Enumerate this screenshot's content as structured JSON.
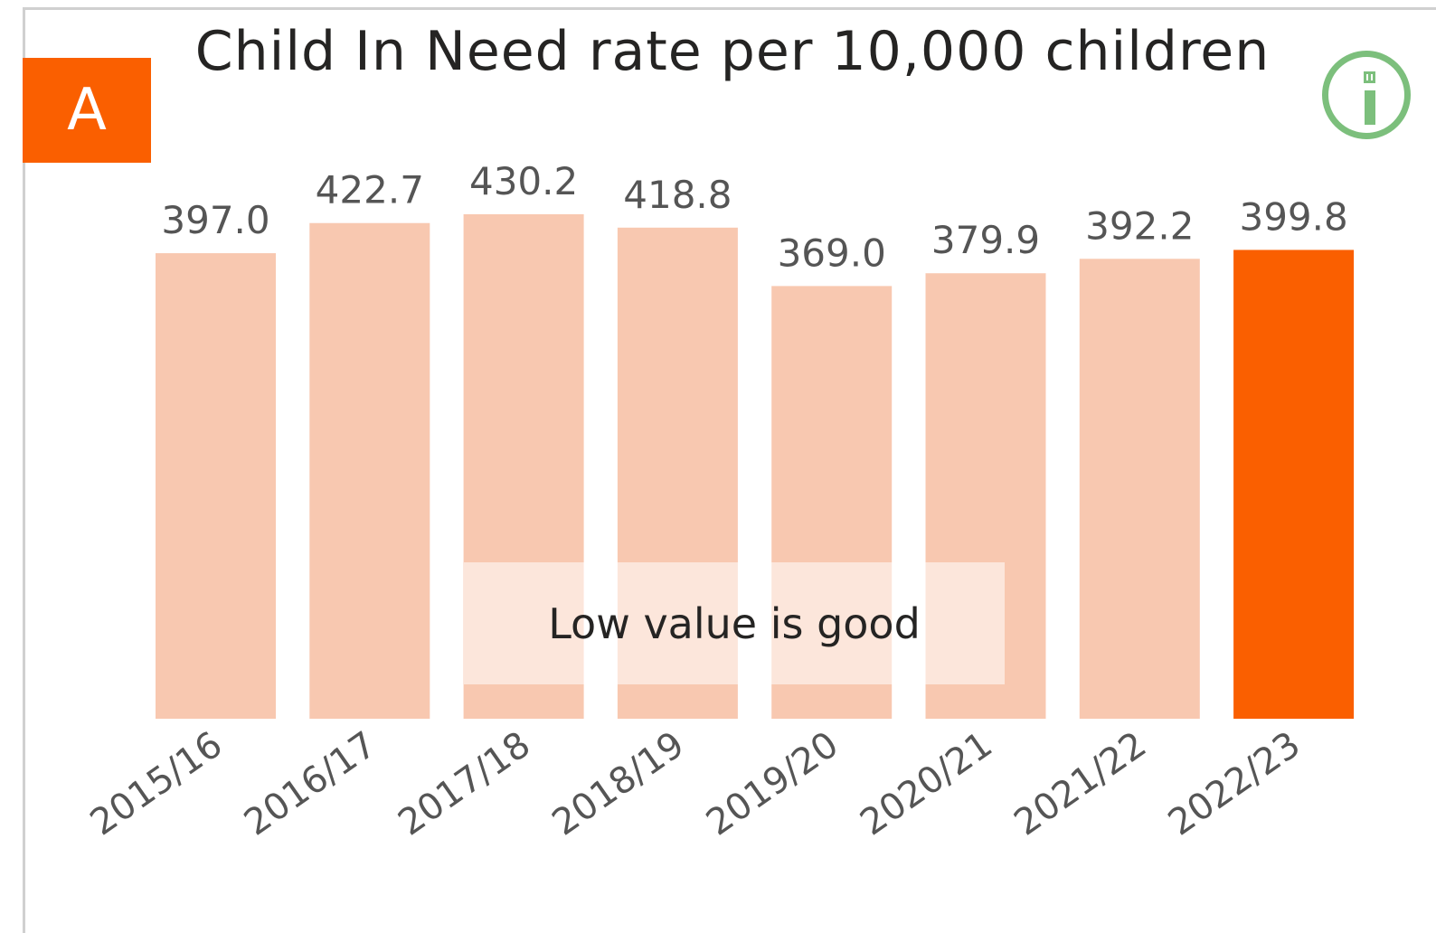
{
  "badge": {
    "text": "A",
    "color": "#fa5f00"
  },
  "info_button": {
    "icon": "info-icon",
    "color": "#7cbf7c"
  },
  "note": "Low value is good",
  "chart_data": {
    "type": "bar",
    "title": "Child In Need rate per 10,000 children",
    "categories": [
      "2015/16",
      "2016/17",
      "2017/18",
      "2018/19",
      "2019/20",
      "2020/21",
      "2021/22",
      "2022/23"
    ],
    "values": [
      397.0,
      422.7,
      430.2,
      418.8,
      369.0,
      379.9,
      392.2,
      399.8
    ],
    "value_labels": [
      "397.0",
      "422.7",
      "430.2",
      "418.8",
      "369.0",
      "379.9",
      "392.2",
      "399.8"
    ],
    "highlight_index": 7,
    "ylim": [
      0,
      430.2
    ],
    "colors": {
      "bar": "#f8c8b0",
      "highlight": "#fa5f00"
    },
    "grid": false,
    "legend": "none"
  }
}
